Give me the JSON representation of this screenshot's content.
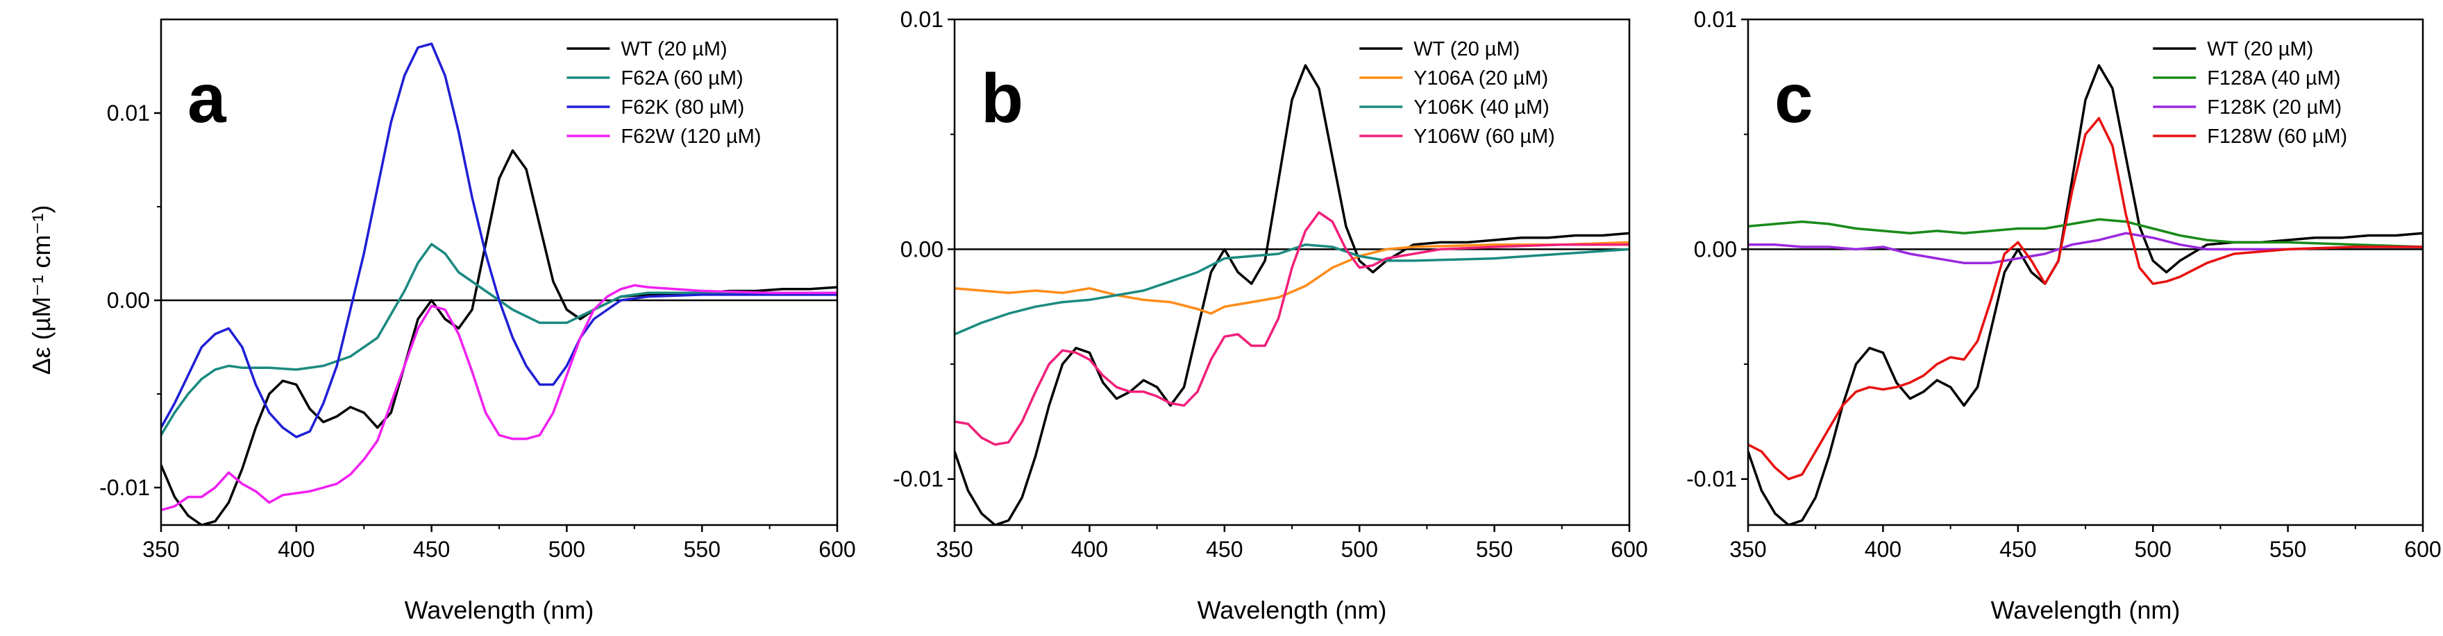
{
  "chart_data": [
    {
      "type": "line",
      "panel_label": "a",
      "xlabel": "Wavelength (nm)",
      "ylabel": "Δε (µM⁻¹ cm⁻¹)",
      "xlim": [
        350,
        600
      ],
      "ylim": [
        -0.012,
        0.015
      ],
      "xticks": [
        350,
        400,
        450,
        500,
        550,
        600
      ],
      "xtick_labels": [
        "350",
        "400",
        "450",
        "500",
        "550",
        "600"
      ],
      "yticks": [
        -0.01,
        0,
        0.01
      ],
      "ytick_labels": [
        "-0.01",
        "0.00",
        "0.01"
      ],
      "legend_position": "top-right",
      "series": [
        {
          "name": "WT (20 µM)",
          "color": "#000000",
          "x": [
            350,
            355,
            360,
            365,
            370,
            375,
            380,
            385,
            390,
            395,
            400,
            405,
            410,
            415,
            420,
            425,
            430,
            435,
            440,
            445,
            450,
            455,
            460,
            465,
            470,
            475,
            480,
            485,
            490,
            495,
            500,
            505,
            510,
            520,
            530,
            540,
            550,
            560,
            570,
            580,
            590,
            600
          ],
          "y": [
            -0.0088,
            -0.0105,
            -0.0115,
            -0.012,
            -0.0118,
            -0.0108,
            -0.009,
            -0.0068,
            -0.005,
            -0.0043,
            -0.0045,
            -0.0058,
            -0.0065,
            -0.0062,
            -0.0057,
            -0.006,
            -0.0068,
            -0.006,
            -0.0035,
            -0.001,
            0.0,
            -0.001,
            -0.0015,
            -0.0005,
            0.003,
            0.0065,
            0.008,
            0.007,
            0.004,
            0.001,
            -0.0005,
            -0.001,
            -0.0005,
            0.0002,
            0.0003,
            0.0003,
            0.0004,
            0.0005,
            0.0005,
            0.0006,
            0.0006,
            0.0007
          ]
        },
        {
          "name": "F62A (60 µM)",
          "color": "#1a8a80",
          "x": [
            350,
            355,
            360,
            365,
            370,
            375,
            380,
            390,
            400,
            410,
            420,
            430,
            440,
            445,
            450,
            455,
            460,
            470,
            480,
            490,
            500,
            510,
            520,
            530,
            550,
            575,
            600
          ],
          "y": [
            -0.0072,
            -0.006,
            -0.005,
            -0.0042,
            -0.0037,
            -0.0035,
            -0.0036,
            -0.0036,
            -0.0037,
            -0.0035,
            -0.003,
            -0.002,
            0.0005,
            0.002,
            0.003,
            0.0025,
            0.0015,
            0.0005,
            -0.0005,
            -0.0012,
            -0.0012,
            -0.0005,
            0.0002,
            0.0004,
            0.0004,
            0.0004,
            0.0003
          ]
        },
        {
          "name": "F62K (80 µM)",
          "color": "#1f1fd6",
          "x": [
            350,
            355,
            360,
            365,
            370,
            375,
            380,
            385,
            390,
            395,
            400,
            405,
            410,
            415,
            420,
            425,
            430,
            435,
            440,
            445,
            450,
            455,
            460,
            465,
            470,
            475,
            480,
            485,
            490,
            495,
            500,
            505,
            510,
            515,
            520,
            530,
            550,
            575,
            600
          ],
          "y": [
            -0.0068,
            -0.0055,
            -0.004,
            -0.0025,
            -0.0018,
            -0.0015,
            -0.0025,
            -0.0045,
            -0.006,
            -0.0068,
            -0.0073,
            -0.007,
            -0.0055,
            -0.0035,
            -0.0005,
            0.0025,
            0.006,
            0.0095,
            0.012,
            0.0135,
            0.0137,
            0.012,
            0.009,
            0.0055,
            0.0025,
            0.0,
            -0.002,
            -0.0035,
            -0.0045,
            -0.0045,
            -0.0035,
            -0.002,
            -0.001,
            -0.0005,
            0.0,
            0.0002,
            0.0003,
            0.0003,
            0.0003
          ]
        },
        {
          "name": "F62W (120 µM)",
          "color": "#f020f0",
          "x": [
            350,
            355,
            360,
            365,
            370,
            375,
            380,
            385,
            390,
            395,
            400,
            405,
            410,
            415,
            420,
            425,
            430,
            435,
            440,
            445,
            450,
            455,
            460,
            465,
            470,
            475,
            480,
            485,
            490,
            495,
            500,
            505,
            510,
            515,
            520,
            525,
            530,
            540,
            550,
            575,
            600
          ],
          "y": [
            -0.0112,
            -0.011,
            -0.0105,
            -0.0105,
            -0.01,
            -0.0092,
            -0.0098,
            -0.0102,
            -0.0108,
            -0.0104,
            -0.0103,
            -0.0102,
            -0.01,
            -0.0098,
            -0.0093,
            -0.0085,
            -0.0075,
            -0.0055,
            -0.0035,
            -0.0015,
            -0.0003,
            -0.0005,
            -0.0018,
            -0.0038,
            -0.006,
            -0.0072,
            -0.0074,
            -0.0074,
            -0.0072,
            -0.006,
            -0.004,
            -0.002,
            -0.0005,
            0.0002,
            0.0006,
            0.0008,
            0.0007,
            0.0006,
            0.0005,
            0.0004,
            0.0004
          ]
        }
      ]
    },
    {
      "type": "line",
      "panel_label": "b",
      "xlabel": "Wavelength (nm)",
      "ylabel": "",
      "xlim": [
        350,
        600
      ],
      "ylim": [
        -0.012,
        0.01
      ],
      "xticks": [
        350,
        400,
        450,
        500,
        550,
        600
      ],
      "xtick_labels": [
        "350",
        "400",
        "450",
        "500",
        "550",
        "600"
      ],
      "yticks": [
        -0.01,
        0,
        0.01
      ],
      "ytick_labels": [
        "-0.01",
        "0.00",
        "0.01"
      ],
      "legend_position": "top-right",
      "series": [
        {
          "name": "WT (20 µM)",
          "color": "#000000",
          "x": [
            350,
            355,
            360,
            365,
            370,
            375,
            380,
            385,
            390,
            395,
            400,
            405,
            410,
            415,
            420,
            425,
            430,
            435,
            440,
            445,
            450,
            455,
            460,
            465,
            470,
            475,
            480,
            485,
            490,
            495,
            500,
            505,
            510,
            520,
            530,
            540,
            550,
            560,
            570,
            580,
            590,
            600
          ],
          "y": [
            -0.0088,
            -0.0105,
            -0.0115,
            -0.012,
            -0.0118,
            -0.0108,
            -0.009,
            -0.0068,
            -0.005,
            -0.0043,
            -0.0045,
            -0.0058,
            -0.0065,
            -0.0062,
            -0.0057,
            -0.006,
            -0.0068,
            -0.006,
            -0.0035,
            -0.001,
            0.0,
            -0.001,
            -0.0015,
            -0.0005,
            0.003,
            0.0065,
            0.008,
            0.007,
            0.004,
            0.001,
            -0.0005,
            -0.001,
            -0.0005,
            0.0002,
            0.0003,
            0.0003,
            0.0004,
            0.0005,
            0.0005,
            0.0006,
            0.0006,
            0.0007
          ]
        },
        {
          "name": "Y106A (20 µM)",
          "color": "#ff8c1a",
          "x": [
            350,
            360,
            370,
            380,
            390,
            400,
            410,
            420,
            430,
            440,
            445,
            450,
            460,
            470,
            480,
            490,
            500,
            510,
            520,
            550,
            575,
            600
          ],
          "y": [
            -0.0017,
            -0.0018,
            -0.0019,
            -0.0018,
            -0.0019,
            -0.0017,
            -0.002,
            -0.0022,
            -0.0023,
            -0.0026,
            -0.0028,
            -0.0025,
            -0.0023,
            -0.0021,
            -0.0016,
            -0.0008,
            -0.0003,
            0.0,
            0.0001,
            0.0002,
            0.0002,
            0.0003
          ]
        },
        {
          "name": "Y106K (40 µM)",
          "color": "#1a8a80",
          "x": [
            350,
            360,
            370,
            380,
            390,
            400,
            410,
            420,
            430,
            440,
            450,
            460,
            470,
            480,
            490,
            500,
            510,
            520,
            550,
            575,
            600
          ],
          "y": [
            -0.0037,
            -0.0032,
            -0.0028,
            -0.0025,
            -0.0023,
            -0.0022,
            -0.002,
            -0.0018,
            -0.0014,
            -0.001,
            -0.0004,
            -0.0003,
            -0.0002,
            0.0002,
            0.0001,
            -0.0003,
            -0.0005,
            -0.0005,
            -0.0004,
            -0.0002,
            0.0
          ]
        },
        {
          "name": "Y106W (60 µM)",
          "color": "#f0207a",
          "x": [
            350,
            355,
            360,
            365,
            370,
            375,
            380,
            385,
            390,
            395,
            400,
            405,
            410,
            415,
            420,
            425,
            430,
            435,
            440,
            445,
            450,
            455,
            460,
            465,
            470,
            475,
            480,
            485,
            490,
            495,
            500,
            505,
            510,
            520,
            530,
            550,
            575,
            600
          ],
          "y": [
            -0.0075,
            -0.0076,
            -0.0082,
            -0.0085,
            -0.0084,
            -0.0075,
            -0.0062,
            -0.005,
            -0.0044,
            -0.0045,
            -0.0048,
            -0.0055,
            -0.006,
            -0.0062,
            -0.0062,
            -0.0064,
            -0.0067,
            -0.0068,
            -0.0062,
            -0.0048,
            -0.0038,
            -0.0037,
            -0.0042,
            -0.0042,
            -0.003,
            -0.0008,
            0.0008,
            0.0016,
            0.0012,
            0.0,
            -0.0008,
            -0.0007,
            -0.0004,
            -0.0002,
            0.0,
            0.0001,
            0.0002,
            0.0002
          ]
        }
      ]
    },
    {
      "type": "line",
      "panel_label": "c",
      "xlabel": "Wavelength (nm)",
      "ylabel": "",
      "xlim": [
        350,
        600
      ],
      "ylim": [
        -0.012,
        0.01
      ],
      "xticks": [
        350,
        400,
        450,
        500,
        550,
        600
      ],
      "xtick_labels": [
        "350",
        "400",
        "450",
        "500",
        "550",
        "600"
      ],
      "yticks": [
        -0.01,
        0,
        0.01
      ],
      "ytick_labels": [
        "-0.01",
        "0.00",
        "0.01"
      ],
      "legend_position": "top-right",
      "series": [
        {
          "name": "WT (20 µM)",
          "color": "#000000",
          "x": [
            350,
            355,
            360,
            365,
            370,
            375,
            380,
            385,
            390,
            395,
            400,
            405,
            410,
            415,
            420,
            425,
            430,
            435,
            440,
            445,
            450,
            455,
            460,
            465,
            470,
            475,
            480,
            485,
            490,
            495,
            500,
            505,
            510,
            520,
            530,
            540,
            550,
            560,
            570,
            580,
            590,
            600
          ],
          "y": [
            -0.0088,
            -0.0105,
            -0.0115,
            -0.012,
            -0.0118,
            -0.0108,
            -0.009,
            -0.0068,
            -0.005,
            -0.0043,
            -0.0045,
            -0.0058,
            -0.0065,
            -0.0062,
            -0.0057,
            -0.006,
            -0.0068,
            -0.006,
            -0.0035,
            -0.001,
            0.0,
            -0.001,
            -0.0015,
            -0.0005,
            0.003,
            0.0065,
            0.008,
            0.007,
            0.004,
            0.001,
            -0.0005,
            -0.001,
            -0.0005,
            0.0002,
            0.0003,
            0.0003,
            0.0004,
            0.0005,
            0.0005,
            0.0006,
            0.0006,
            0.0007
          ]
        },
        {
          "name": "F128A (40 µM)",
          "color": "#1a8a1a",
          "x": [
            350,
            360,
            370,
            380,
            390,
            400,
            410,
            420,
            430,
            440,
            450,
            460,
            470,
            480,
            490,
            500,
            510,
            520,
            530,
            550,
            575,
            600
          ],
          "y": [
            0.001,
            0.0011,
            0.0012,
            0.0011,
            0.0009,
            0.0008,
            0.0007,
            0.0008,
            0.0007,
            0.0008,
            0.0009,
            0.0009,
            0.0011,
            0.0013,
            0.0012,
            0.0009,
            0.0006,
            0.0004,
            0.0003,
            0.0003,
            0.0002,
            0.0001
          ]
        },
        {
          "name": "F128K (20 µM)",
          "color": "#9a28e0",
          "x": [
            350,
            360,
            370,
            380,
            390,
            400,
            410,
            420,
            430,
            440,
            450,
            460,
            470,
            480,
            490,
            500,
            510,
            520,
            550,
            575,
            600
          ],
          "y": [
            0.0002,
            0.0002,
            0.0001,
            0.0001,
            0.0,
            0.0001,
            -0.0002,
            -0.0004,
            -0.0006,
            -0.0006,
            -0.0004,
            -0.0002,
            0.0002,
            0.0004,
            0.0007,
            0.0005,
            0.0002,
            0.0,
            0.0,
            0.0001,
            0.0001
          ]
        },
        {
          "name": "F128W (60 µM)",
          "color": "#e81010",
          "x": [
            350,
            355,
            360,
            365,
            370,
            375,
            380,
            385,
            390,
            395,
            400,
            405,
            410,
            415,
            420,
            425,
            430,
            435,
            440,
            445,
            450,
            455,
            460,
            465,
            470,
            475,
            480,
            485,
            490,
            495,
            500,
            505,
            510,
            520,
            530,
            550,
            575,
            600
          ],
          "y": [
            -0.0085,
            -0.0088,
            -0.0095,
            -0.01,
            -0.0098,
            -0.0088,
            -0.0078,
            -0.0068,
            -0.0062,
            -0.006,
            -0.0061,
            -0.006,
            -0.0058,
            -0.0055,
            -0.005,
            -0.0047,
            -0.0048,
            -0.004,
            -0.0022,
            -0.0002,
            0.0003,
            -0.0005,
            -0.0015,
            -0.0005,
            0.0025,
            0.005,
            0.0057,
            0.0045,
            0.0015,
            -0.0008,
            -0.0015,
            -0.0014,
            -0.0012,
            -0.0006,
            -0.0002,
            0.0,
            0.0001,
            0.0001
          ]
        }
      ]
    }
  ]
}
